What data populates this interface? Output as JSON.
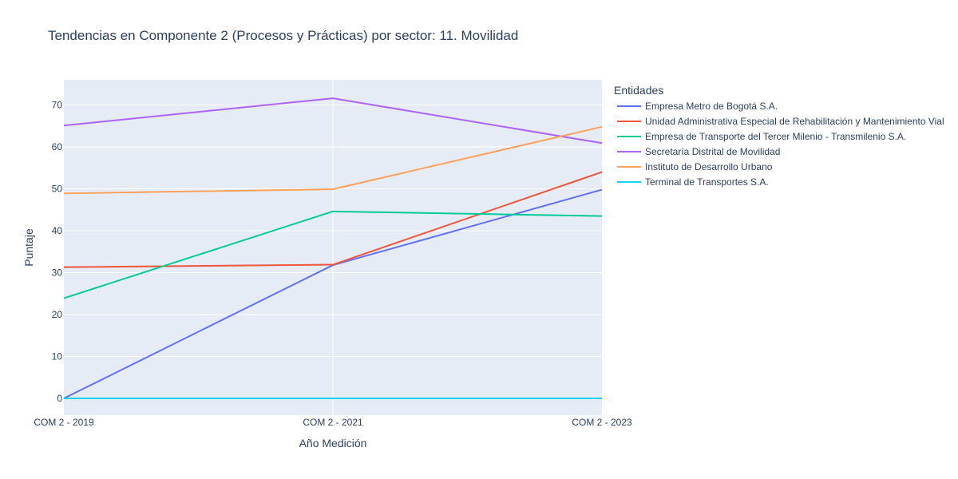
{
  "chart_data": {
    "type": "line",
    "title": "Tendencias en Componente 2 (Procesos y Prácticas) por sector: 11. Movilidad",
    "xlabel": "Año Medición",
    "ylabel": "Puntaje",
    "categories": [
      "COM 2 - 2019",
      "COM 2 - 2021",
      "COM 2 - 2023"
    ],
    "ylim": [
      -4,
      76
    ],
    "yticks": [
      0,
      10,
      20,
      30,
      40,
      50,
      60,
      70
    ],
    "grid": true,
    "legend": {
      "title": "Entidades",
      "placement": "right"
    },
    "series": [
      {
        "name": "Empresa Metro de Bogotá S.A.",
        "color": "#636efa",
        "values": [
          0,
          31.8,
          49.8
        ]
      },
      {
        "name": "Unidad Administrativa Especial de Rehabilitación y Mantenimiento Vial",
        "color": "#ef553b",
        "values": [
          31.3,
          31.9,
          54.0
        ]
      },
      {
        "name": "Empresa de Transporte del Tercer Milenio - Transmilenio S.A.",
        "color": "#00cc96",
        "values": [
          23.9,
          44.6,
          43.5
        ]
      },
      {
        "name": "Secretaría Distrital de Movilidad",
        "color": "#ab63fa",
        "values": [
          65.1,
          71.6,
          60.9
        ]
      },
      {
        "name": "Instituto de Desarrollo Urbano",
        "color": "#ffa15a",
        "values": [
          48.9,
          49.9,
          64.8
        ]
      },
      {
        "name": "Terminal de Transportes S.A.",
        "color": "#19d3f3",
        "values": [
          0,
          0,
          0
        ]
      }
    ],
    "colors": {
      "plot_background": "#e5ecf6",
      "grid": "#ffffff",
      "text": "#2a3f5f"
    }
  }
}
